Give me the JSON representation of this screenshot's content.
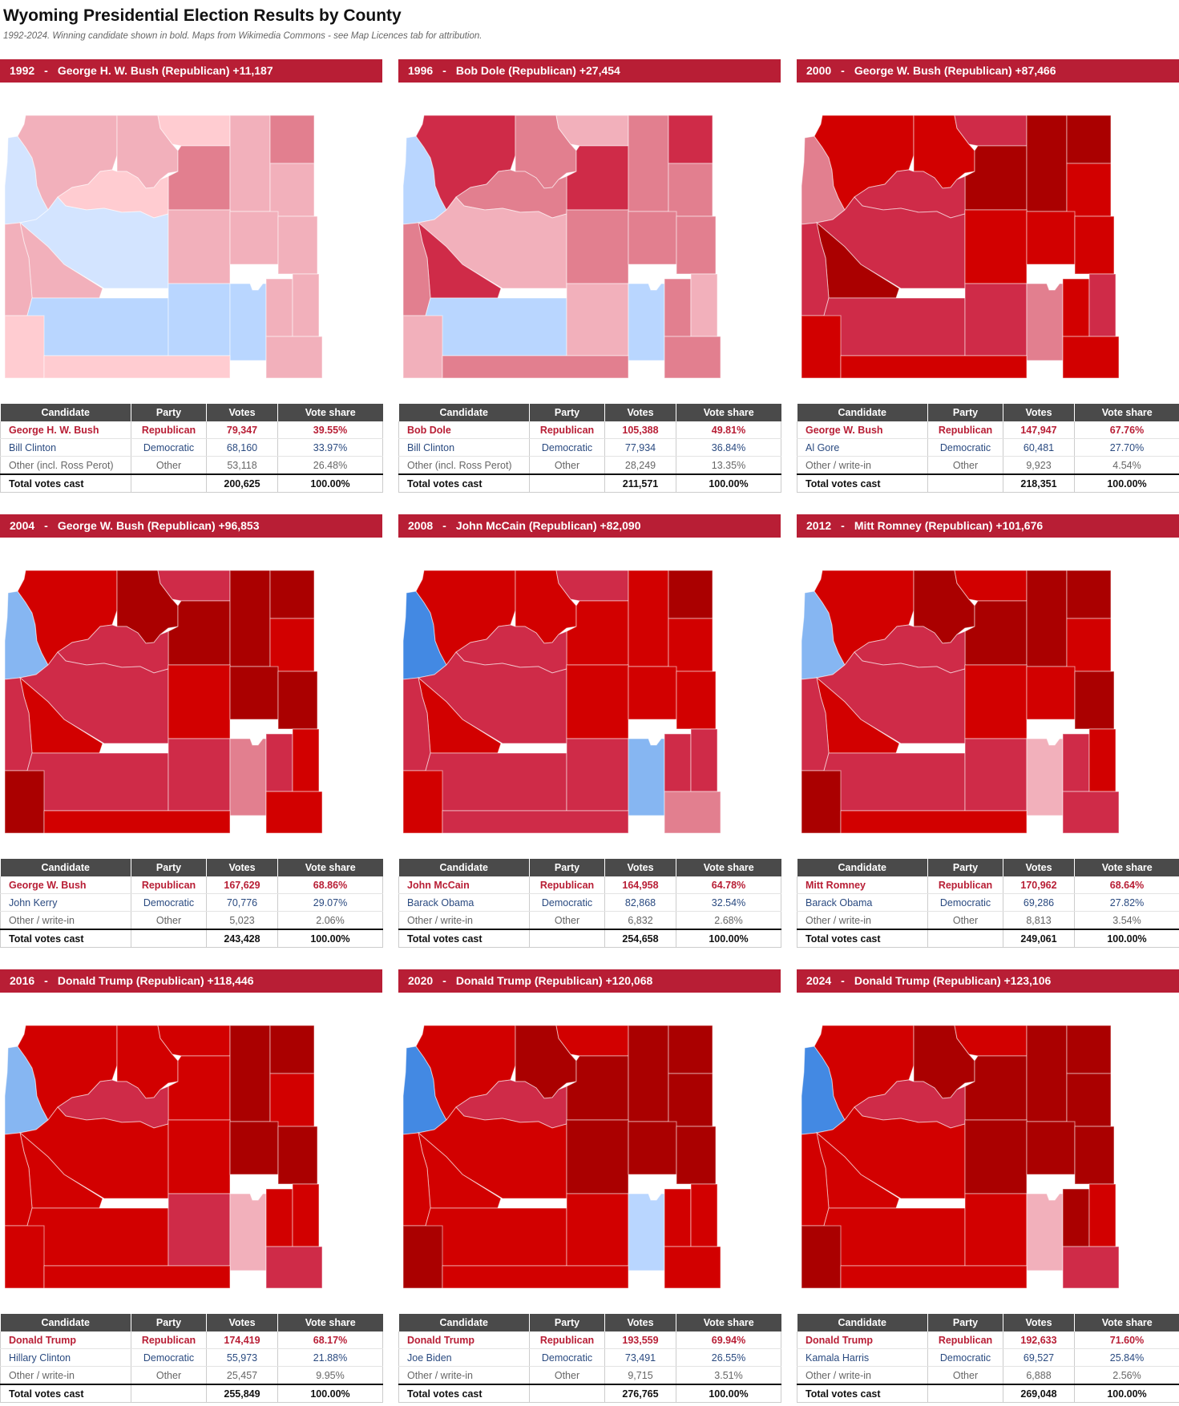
{
  "header": {
    "title": "Wyoming Presidential Election Results by County",
    "subtitle": "1992-2024. Winning candidate shown in bold. Maps from Wikimedia Commons - see Map Licences tab for attribution."
  },
  "table_headers": [
    "Candidate",
    "Party",
    "Votes",
    "Vote share"
  ],
  "colors": {
    "banner": "#b81e35",
    "r1": "#ffccd1",
    "r2": "#f2b0bb",
    "r3": "#e27f8f",
    "r4": "#cf2b48",
    "r5": "#d20000",
    "r6": "#aa0000",
    "d1": "#d3e4ff",
    "d2": "#b9d6ff",
    "d3": "#86b6f2",
    "d4": "#4389e3"
  },
  "elections": [
    {
      "year": "1992",
      "sep": "-",
      "winner": "George H. W. Bush (Republican) +11,187",
      "fills": [
        "d1",
        "r2",
        "r2",
        "r1",
        "r3",
        "r2",
        "r3",
        "r2",
        "r1",
        "d1",
        "r2",
        "r2",
        "r2",
        "r2",
        "r2",
        "d2",
        "d2",
        "d2",
        "r2",
        "r2",
        "r2",
        "r1",
        "r1"
      ],
      "rows": [
        {
          "candidate": "George H. W. Bush",
          "party": "Republican",
          "votes": "79,347",
          "share": "39.55%"
        },
        {
          "candidate": "Bill Clinton",
          "party": "Democratic",
          "votes": "68,160",
          "share": "33.97%"
        },
        {
          "candidate": "Other (incl. Ross Perot)",
          "party": "Other",
          "votes": "53,118",
          "share": "26.48%"
        }
      ],
      "total": {
        "label": "Total votes cast",
        "votes": "200,625",
        "share": "100.00%"
      }
    },
    {
      "year": "1996",
      "sep": "-",
      "winner": "Bob Dole (Republican) +27,454",
      "fills": [
        "d2",
        "r4",
        "r3",
        "r2",
        "r4",
        "r3",
        "r4",
        "r3",
        "r3",
        "r2",
        "r3",
        "r3",
        "r3",
        "r4",
        "r3",
        "d2",
        "r2",
        "d2",
        "r3",
        "r2",
        "r3",
        "r2",
        "r3"
      ],
      "rows": [
        {
          "candidate": "Bob Dole",
          "party": "Republican",
          "votes": "105,388",
          "share": "49.81%"
        },
        {
          "candidate": "Bill Clinton",
          "party": "Democratic",
          "votes": "77,934",
          "share": "36.84%"
        },
        {
          "candidate": "Other (incl. Ross Perot)",
          "party": "Other",
          "votes": "28,249",
          "share": "13.35%"
        }
      ],
      "total": {
        "label": "Total votes cast",
        "votes": "211,571",
        "share": "100.00%"
      }
    },
    {
      "year": "2000",
      "sep": "-",
      "winner": "George W. Bush (Republican) +87,466",
      "fills": [
        "r3",
        "r5",
        "r5",
        "r4",
        "r6",
        "r6",
        "r6",
        "r5",
        "r4",
        "r4",
        "r5",
        "r5",
        "r5",
        "r6",
        "r4",
        "r4",
        "r4",
        "r3",
        "r5",
        "r4",
        "r5",
        "r5",
        "r5"
      ],
      "rows": [
        {
          "candidate": "George W. Bush",
          "party": "Republican",
          "votes": "147,947",
          "share": "67.76%"
        },
        {
          "candidate": "Al Gore",
          "party": "Democratic",
          "votes": "60,481",
          "share": "27.70%"
        },
        {
          "candidate": "Other / write-in",
          "party": "Other",
          "votes": "9,923",
          "share": "4.54%"
        }
      ],
      "total": {
        "label": "Total votes cast",
        "votes": "218,351",
        "share": "100.00%"
      }
    },
    {
      "year": "2004",
      "sep": "-",
      "winner": "George W. Bush (Republican) +96,853",
      "fills": [
        "d3",
        "r5",
        "r6",
        "r4",
        "r6",
        "r6",
        "r6",
        "r5",
        "r4",
        "r4",
        "r5",
        "r6",
        "r6",
        "r5",
        "r4",
        "r4",
        "r4",
        "r3",
        "r4",
        "r5",
        "r5",
        "r6",
        "r5"
      ],
      "rows": [
        {
          "candidate": "George W. Bush",
          "party": "Republican",
          "votes": "167,629",
          "share": "68.86%"
        },
        {
          "candidate": "John Kerry",
          "party": "Democratic",
          "votes": "70,776",
          "share": "29.07%"
        },
        {
          "candidate": "Other / write-in",
          "party": "Other",
          "votes": "5,023",
          "share": "2.06%"
        }
      ],
      "total": {
        "label": "Total votes cast",
        "votes": "243,428",
        "share": "100.00%"
      }
    },
    {
      "year": "2008",
      "sep": "-",
      "winner": "John McCain (Republican) +82,090",
      "fills": [
        "d4",
        "r5",
        "r5",
        "r4",
        "r5",
        "r5",
        "r6",
        "r5",
        "r4",
        "r4",
        "r5",
        "r5",
        "r5",
        "r5",
        "r4",
        "r4",
        "r4",
        "d3",
        "r4",
        "r4",
        "r3",
        "r5",
        "r4"
      ],
      "rows": [
        {
          "candidate": "John McCain",
          "party": "Republican",
          "votes": "164,958",
          "share": "64.78%"
        },
        {
          "candidate": "Barack Obama",
          "party": "Democratic",
          "votes": "82,868",
          "share": "32.54%"
        },
        {
          "candidate": "Other / write-in",
          "party": "Other",
          "votes": "6,832",
          "share": "2.68%"
        }
      ],
      "total": {
        "label": "Total votes cast",
        "votes": "254,658",
        "share": "100.00%"
      }
    },
    {
      "year": "2012",
      "sep": "-",
      "winner": "Mitt Romney (Republican) +101,676",
      "fills": [
        "d3",
        "r5",
        "r6",
        "r5",
        "r6",
        "r6",
        "r6",
        "r5",
        "r4",
        "r4",
        "r5",
        "r5",
        "r6",
        "r5",
        "r4",
        "r4",
        "r4",
        "r2",
        "r4",
        "r5",
        "r4",
        "r6",
        "r5"
      ],
      "rows": [
        {
          "candidate": "Mitt Romney",
          "party": "Republican",
          "votes": "170,962",
          "share": "68.64%"
        },
        {
          "candidate": "Barack Obama",
          "party": "Democratic",
          "votes": "69,286",
          "share": "27.82%"
        },
        {
          "candidate": "Other / write-in",
          "party": "Other",
          "votes": "8,813",
          "share": "3.54%"
        }
      ],
      "total": {
        "label": "Total votes cast",
        "votes": "249,061",
        "share": "100.00%"
      }
    },
    {
      "year": "2016",
      "sep": "-",
      "winner": "Donald Trump (Republican) +118,446",
      "fills": [
        "d3",
        "r5",
        "r5",
        "r5",
        "r5",
        "r6",
        "r6",
        "r5",
        "r4",
        "r5",
        "r5",
        "r6",
        "r6",
        "r5",
        "r5",
        "r5",
        "r4",
        "r2",
        "r5",
        "r5",
        "r4",
        "r5",
        "r5"
      ],
      "rows": [
        {
          "candidate": "Donald Trump",
          "party": "Republican",
          "votes": "174,419",
          "share": "68.17%"
        },
        {
          "candidate": "Hillary Clinton",
          "party": "Democratic",
          "votes": "55,973",
          "share": "21.88%"
        },
        {
          "candidate": "Other / write-in",
          "party": "Other",
          "votes": "25,457",
          "share": "9.95%"
        }
      ],
      "total": {
        "label": "Total votes cast",
        "votes": "255,849",
        "share": "100.00%"
      }
    },
    {
      "year": "2020",
      "sep": "-",
      "winner": "Donald Trump (Republican) +120,068",
      "fills": [
        "d4",
        "r5",
        "r6",
        "r5",
        "r6",
        "r6",
        "r6",
        "r6",
        "r4",
        "r5",
        "r6",
        "r6",
        "r6",
        "r5",
        "r5",
        "r5",
        "r5",
        "d2",
        "r5",
        "r5",
        "r5",
        "r6",
        "r5"
      ],
      "rows": [
        {
          "candidate": "Donald Trump",
          "party": "Republican",
          "votes": "193,559",
          "share": "69.94%"
        },
        {
          "candidate": "Joe Biden",
          "party": "Democratic",
          "votes": "73,491",
          "share": "26.55%"
        },
        {
          "candidate": "Other / write-in",
          "party": "Other",
          "votes": "9,715",
          "share": "3.51%"
        }
      ],
      "total": {
        "label": "Total votes cast",
        "votes": "276,765",
        "share": "100.00%"
      }
    },
    {
      "year": "2024",
      "sep": "-",
      "winner": "Donald Trump (Republican) +123,106",
      "fills": [
        "d4",
        "r5",
        "r6",
        "r5",
        "r6",
        "r6",
        "r6",
        "r6",
        "r4",
        "r5",
        "r6",
        "r6",
        "r6",
        "r5",
        "r5",
        "r5",
        "r5",
        "r2",
        "r6",
        "r5",
        "r4",
        "r6",
        "r5"
      ],
      "rows": [
        {
          "candidate": "Donald Trump",
          "party": "Republican",
          "votes": "192,633",
          "share": "71.60%"
        },
        {
          "candidate": "Kamala Harris",
          "party": "Democratic",
          "votes": "69,527",
          "share": "25.84%"
        },
        {
          "candidate": "Other / write-in",
          "party": "Other",
          "votes": "6,888",
          "share": "2.56%"
        }
      ],
      "total": {
        "label": "Total votes cast",
        "votes": "269,048",
        "share": "100.00%"
      }
    }
  ]
}
